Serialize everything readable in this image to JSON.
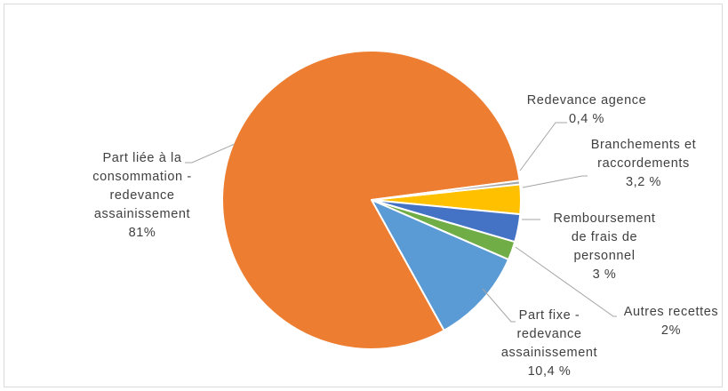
{
  "chart_data": {
    "type": "pie",
    "title": "",
    "start_angle_deg": -6,
    "direction": "clockwise",
    "slices": [
      {
        "id": "branchements",
        "label_lines": [
          "Branchements et",
          "raccordements",
          "3,2 %"
        ],
        "value": 3.2,
        "color": "#FFC000"
      },
      {
        "id": "remboursement",
        "label_lines": [
          "Remboursement",
          "de frais de",
          "personnel",
          "3 %"
        ],
        "value": 3.0,
        "color": "#4472C4"
      },
      {
        "id": "autres",
        "label_lines": [
          "Autres recettes",
          "2%"
        ],
        "value": 2.0,
        "color": "#70AD47"
      },
      {
        "id": "part-fixe",
        "label_lines": [
          "Part fixe -",
          "redevance",
          "assainissement",
          "10,4 %"
        ],
        "value": 10.4,
        "color": "#5B9BD5"
      },
      {
        "id": "part-consommation",
        "label_lines": [
          "Part liée à la",
          "consommation -",
          "redevance",
          "assainissement",
          "81%"
        ],
        "value": 81.0,
        "color": "#ED7D31"
      },
      {
        "id": "redevance-agence",
        "label_lines": [
          "Redevance agence",
          "0,4 %"
        ],
        "value": 0.4,
        "color": "#A5A5A5"
      }
    ]
  }
}
